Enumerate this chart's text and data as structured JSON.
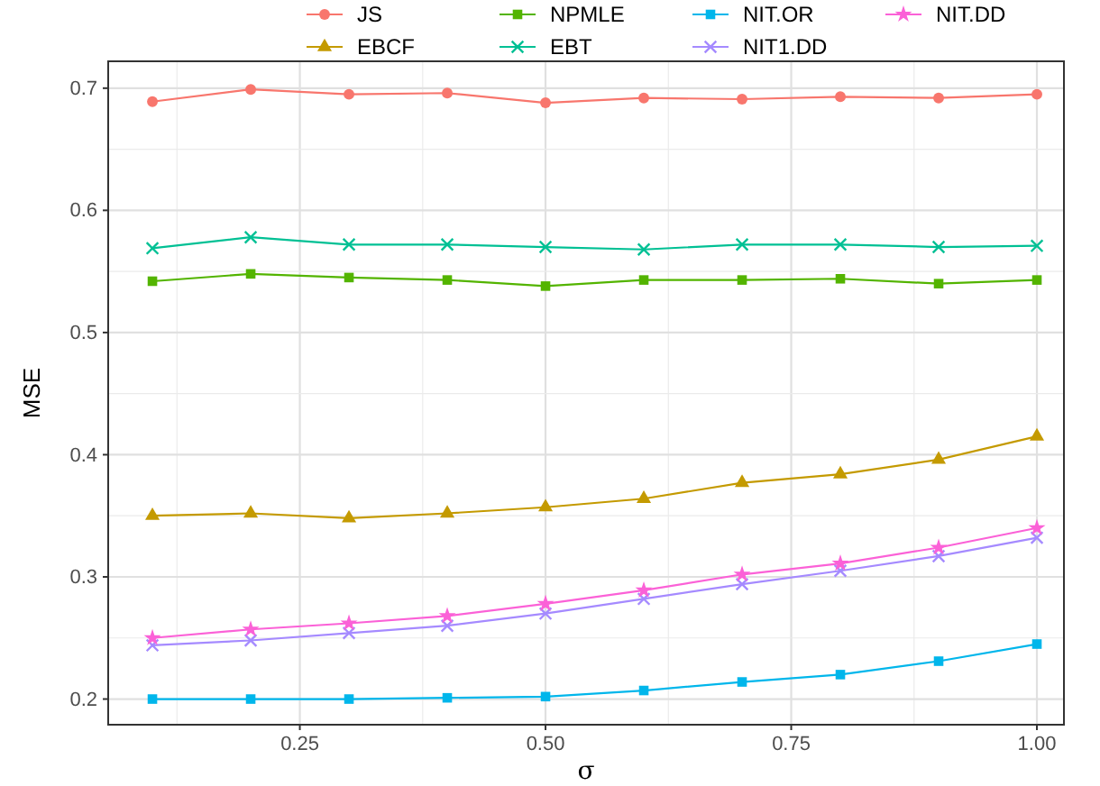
{
  "chart_data": {
    "type": "line",
    "xlabel": "σ",
    "ylabel": "MSE",
    "x": [
      0.1,
      0.2,
      0.3,
      0.4,
      0.5,
      0.6,
      0.7,
      0.8,
      0.9,
      1.0
    ],
    "xlim": [
      0.055,
      1.0275
    ],
    "ylim": [
      0.179,
      0.722
    ],
    "xticks": [
      {
        "value": 0.25,
        "label": "0.25"
      },
      {
        "value": 0.5,
        "label": "0.50"
      },
      {
        "value": 0.75,
        "label": "0.75"
      },
      {
        "value": 1.0,
        "label": "1.00"
      }
    ],
    "yticks": [
      0.2,
      0.3,
      0.4,
      0.5,
      0.6,
      0.7
    ],
    "grid": true,
    "legend": "top",
    "series": [
      {
        "name": "JS",
        "color": "#f8766d",
        "marker": "circle",
        "values": [
          0.689,
          0.699,
          0.695,
          0.696,
          0.688,
          0.692,
          0.691,
          0.693,
          0.692,
          0.695
        ]
      },
      {
        "name": "EBCF",
        "color": "#c49a00",
        "marker": "triangle",
        "values": [
          0.35,
          0.352,
          0.348,
          0.352,
          0.357,
          0.364,
          0.377,
          0.384,
          0.396,
          0.415
        ]
      },
      {
        "name": "NPMLE",
        "color": "#53b400",
        "marker": "square",
        "values": [
          0.542,
          0.548,
          0.545,
          0.543,
          0.538,
          0.543,
          0.543,
          0.544,
          0.54,
          0.543
        ]
      },
      {
        "name": "EBT",
        "color": "#00c094",
        "marker": "cross",
        "values": [
          0.569,
          0.578,
          0.572,
          0.572,
          0.57,
          0.568,
          0.572,
          0.572,
          0.57,
          0.571
        ]
      },
      {
        "name": "NIT.OR",
        "color": "#00b6eb",
        "marker": "square",
        "values": [
          0.2,
          0.2,
          0.2,
          0.201,
          0.202,
          0.207,
          0.214,
          0.22,
          0.231,
          0.245
        ]
      },
      {
        "name": "NIT1.DD",
        "color": "#a58aff",
        "marker": "cross",
        "values": [
          0.244,
          0.248,
          0.254,
          0.26,
          0.27,
          0.282,
          0.294,
          0.305,
          0.317,
          0.332
        ]
      },
      {
        "name": "NIT.DD",
        "color": "#fb61d7",
        "marker": "star",
        "values": [
          0.25,
          0.257,
          0.262,
          0.268,
          0.278,
          0.289,
          0.302,
          0.311,
          0.324,
          0.34
        ]
      }
    ]
  }
}
